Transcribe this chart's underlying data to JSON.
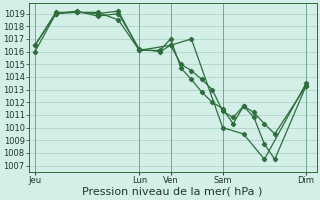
{
  "background_color": "#d4eee8",
  "grid_color": "#a8cfc0",
  "line_color": "#2d6e3c",
  "marker_color": "#2d6e3c",
  "ylim": [
    1006.5,
    1019.8
  ],
  "yticks": [
    1007,
    1008,
    1009,
    1010,
    1011,
    1012,
    1013,
    1014,
    1015,
    1016,
    1017,
    1018,
    1019
  ],
  "xlabel": "Pression niveau de la mer( hPa )",
  "xlabel_fontsize": 8,
  "tick_fontsize": 6,
  "xtick_labels": [
    "Jeu",
    "Lun",
    "Ven",
    "Sam",
    "Dim"
  ],
  "xtick_positions": [
    0,
    5,
    6.5,
    9,
    13
  ],
  "xlim": [
    -0.3,
    13.5
  ],
  "line1_x": [
    0,
    1,
    2,
    3,
    4,
    5,
    6.5,
    7.5,
    9,
    10,
    11,
    13
  ],
  "line1_y": [
    1016.5,
    1019.0,
    1019.1,
    1019.1,
    1018.5,
    1016.1,
    1016.5,
    1017.0,
    1010.0,
    1009.5,
    1007.5,
    1013.5
  ],
  "line2_x": [
    0,
    1,
    2,
    3,
    4,
    5,
    6,
    6.5,
    7,
    7.5,
    8,
    8.5,
    9,
    9.5,
    10,
    10.5,
    11,
    11.5,
    13
  ],
  "line2_y": [
    1016.0,
    1019.0,
    1019.2,
    1018.8,
    1019.0,
    1016.2,
    1016.0,
    1016.5,
    1015.0,
    1014.5,
    1013.8,
    1013.0,
    1011.3,
    1010.8,
    1011.7,
    1011.2,
    1010.3,
    1009.5,
    1013.3
  ],
  "line3_x": [
    0,
    1,
    2,
    3,
    4,
    5,
    6,
    6.5,
    7,
    7.5,
    8,
    8.5,
    9,
    9.5,
    10,
    10.5,
    11,
    11.5,
    13
  ],
  "line3_y": [
    1016.5,
    1019.1,
    1019.1,
    1019.0,
    1019.2,
    1016.1,
    1016.1,
    1017.0,
    1014.7,
    1013.8,
    1012.8,
    1012.0,
    1011.5,
    1010.3,
    1011.7,
    1010.8,
    1008.7,
    1007.5,
    1013.3
  ],
  "vline_color": "#88bbaa",
  "vline_positions": [
    0,
    5,
    6.5,
    9,
    13
  ]
}
